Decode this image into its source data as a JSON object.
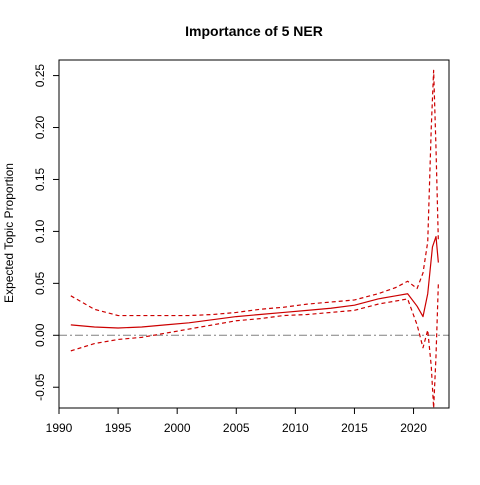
{
  "chart_data": {
    "type": "line",
    "title": "Importance of 5 NER",
    "xlabel": "",
    "ylabel": "Expected Topic Proportion",
    "xlim": [
      1990,
      2023
    ],
    "ylim": [
      -0.07,
      0.265
    ],
    "x_ticks": [
      1990,
      1995,
      2000,
      2005,
      2010,
      2015,
      2020
    ],
    "x_tick_labels": [
      "1990",
      "1995",
      "2000",
      "2005",
      "2010",
      "2015",
      "2020"
    ],
    "y_ticks": [
      -0.05,
      0,
      0.05,
      0.1,
      0.15,
      0.2,
      0.25
    ],
    "y_tick_labels": [
      "-0.05",
      "0.00",
      "0.05",
      "0.10",
      "0.15",
      "0.20",
      "0.25"
    ],
    "grid": false,
    "reference_line": {
      "y": 0,
      "style": "dash-dot",
      "color": "#808080"
    },
    "series": [
      {
        "role": "estimate",
        "color": "#cc0000",
        "line_style": "solid",
        "x": [
          1991,
          1993,
          1995,
          1997,
          1999,
          2001,
          2003,
          2005,
          2007,
          2009,
          2011,
          2013,
          2015,
          2017,
          2018.5,
          2019.5,
          2020.3,
          2020.8,
          2021.2,
          2021.6,
          2021.9,
          2022.1
        ],
        "y": [
          0.01,
          0.008,
          0.007,
          0.008,
          0.01,
          0.012,
          0.015,
          0.018,
          0.02,
          0.022,
          0.024,
          0.026,
          0.029,
          0.035,
          0.038,
          0.04,
          0.028,
          0.018,
          0.04,
          0.085,
          0.095,
          0.07
        ]
      },
      {
        "role": "upper-bound",
        "color": "#cc0000",
        "line_style": "dashed",
        "x": [
          1991,
          1993,
          1995,
          1997,
          1999,
          2001,
          2003,
          2005,
          2007,
          2009,
          2011,
          2013,
          2015,
          2017,
          2018.5,
          2019.5,
          2020.3,
          2020.8,
          2021.2,
          2021.5,
          2021.7,
          2021.9,
          2022.1
        ],
        "y": [
          0.038,
          0.025,
          0.019,
          0.019,
          0.019,
          0.019,
          0.02,
          0.022,
          0.025,
          0.027,
          0.03,
          0.032,
          0.034,
          0.04,
          0.046,
          0.052,
          0.045,
          0.06,
          0.09,
          0.2,
          0.255,
          0.18,
          0.09
        ]
      },
      {
        "role": "lower-bound",
        "color": "#cc0000",
        "line_style": "dashed",
        "x": [
          1991,
          1993,
          1995,
          1997,
          1999,
          2001,
          2003,
          2005,
          2007,
          2009,
          2011,
          2013,
          2015,
          2017,
          2018.5,
          2019.5,
          2020.3,
          2020.8,
          2021.2,
          2021.5,
          2021.7,
          2021.9,
          2022.1
        ],
        "y": [
          -0.015,
          -0.008,
          -0.004,
          -0.002,
          0.002,
          0.006,
          0.01,
          0.014,
          0.016,
          0.019,
          0.02,
          0.022,
          0.024,
          0.03,
          0.033,
          0.035,
          0.01,
          -0.012,
          0.005,
          -0.03,
          -0.07,
          -0.02,
          0.05
        ]
      }
    ]
  }
}
